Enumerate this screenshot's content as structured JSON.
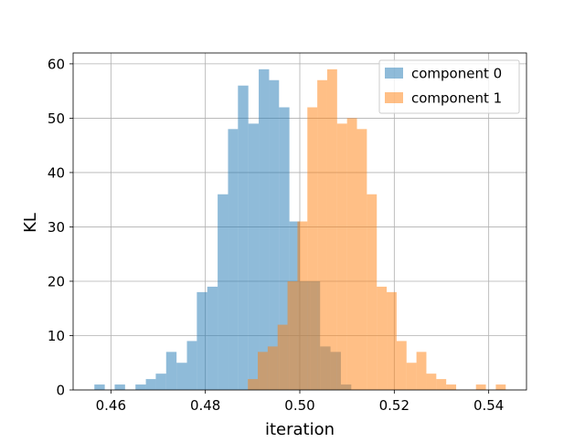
{
  "chart_data": {
    "type": "histogram",
    "xlabel": "iteration",
    "ylabel": "KL",
    "xlim": [
      0.452,
      0.548
    ],
    "ylim": [
      0,
      62
    ],
    "grid": true,
    "legend_position": "top-right",
    "x_ticks": [
      0.46,
      0.48,
      0.5,
      0.52,
      0.54
    ],
    "y_ticks": [
      0,
      10,
      20,
      30,
      40,
      50,
      60
    ],
    "x_tick_labels": [
      "0.46",
      "0.48",
      "0.50",
      "0.52",
      "0.54"
    ],
    "y_tick_labels": [
      "0",
      "10",
      "20",
      "30",
      "40",
      "50",
      "60"
    ],
    "series": [
      {
        "name": "component 0",
        "color": "#1f77b4",
        "opacity": 0.5,
        "bins": [
          {
            "x0": 0.4565,
            "x1": 0.4587,
            "count": 1
          },
          {
            "x0": 0.4608,
            "x1": 0.463,
            "count": 1
          },
          {
            "x0": 0.4652,
            "x1": 0.4674,
            "count": 1
          },
          {
            "x0": 0.4674,
            "x1": 0.4695,
            "count": 2
          },
          {
            "x0": 0.4695,
            "x1": 0.4717,
            "count": 3
          },
          {
            "x0": 0.4717,
            "x1": 0.4739,
            "count": 7
          },
          {
            "x0": 0.4739,
            "x1": 0.4761,
            "count": 5
          },
          {
            "x0": 0.4761,
            "x1": 0.4782,
            "count": 9
          },
          {
            "x0": 0.4782,
            "x1": 0.4804,
            "count": 18
          },
          {
            "x0": 0.4804,
            "x1": 0.4826,
            "count": 19
          },
          {
            "x0": 0.4826,
            "x1": 0.4848,
            "count": 36
          },
          {
            "x0": 0.4848,
            "x1": 0.4869,
            "count": 48
          },
          {
            "x0": 0.4869,
            "x1": 0.4891,
            "count": 56
          },
          {
            "x0": 0.4891,
            "x1": 0.4913,
            "count": 49
          },
          {
            "x0": 0.4913,
            "x1": 0.4935,
            "count": 59
          },
          {
            "x0": 0.4935,
            "x1": 0.4956,
            "count": 57
          },
          {
            "x0": 0.4956,
            "x1": 0.4978,
            "count": 52
          },
          {
            "x0": 0.4978,
            "x1": 0.5,
            "count": 31
          },
          {
            "x0": 0.5,
            "x1": 0.5022,
            "count": 20
          },
          {
            "x0": 0.5022,
            "x1": 0.5043,
            "count": 20
          },
          {
            "x0": 0.5043,
            "x1": 0.5065,
            "count": 8
          },
          {
            "x0": 0.5065,
            "x1": 0.5087,
            "count": 7
          },
          {
            "x0": 0.5087,
            "x1": 0.5109,
            "count": 1
          }
        ]
      },
      {
        "name": "component 1",
        "color": "#ff7f0e",
        "opacity": 0.5,
        "bins": [
          {
            "x0": 0.489,
            "x1": 0.4911,
            "count": 2
          },
          {
            "x0": 0.4911,
            "x1": 0.4932,
            "count": 7
          },
          {
            "x0": 0.4932,
            "x1": 0.4953,
            "count": 8
          },
          {
            "x0": 0.4953,
            "x1": 0.4974,
            "count": 12
          },
          {
            "x0": 0.4974,
            "x1": 0.4995,
            "count": 20
          },
          {
            "x0": 0.4995,
            "x1": 0.5016,
            "count": 31
          },
          {
            "x0": 0.5016,
            "x1": 0.5037,
            "count": 52
          },
          {
            "x0": 0.5037,
            "x1": 0.5058,
            "count": 57
          },
          {
            "x0": 0.5058,
            "x1": 0.5079,
            "count": 59
          },
          {
            "x0": 0.5079,
            "x1": 0.51,
            "count": 49
          },
          {
            "x0": 0.51,
            "x1": 0.5121,
            "count": 50
          },
          {
            "x0": 0.5121,
            "x1": 0.5142,
            "count": 48
          },
          {
            "x0": 0.5142,
            "x1": 0.5163,
            "count": 36
          },
          {
            "x0": 0.5163,
            "x1": 0.5184,
            "count": 19
          },
          {
            "x0": 0.5184,
            "x1": 0.5205,
            "count": 18
          },
          {
            "x0": 0.5205,
            "x1": 0.5226,
            "count": 9
          },
          {
            "x0": 0.5226,
            "x1": 0.5247,
            "count": 5
          },
          {
            "x0": 0.5247,
            "x1": 0.5268,
            "count": 7
          },
          {
            "x0": 0.5268,
            "x1": 0.5289,
            "count": 3
          },
          {
            "x0": 0.5289,
            "x1": 0.531,
            "count": 2
          },
          {
            "x0": 0.531,
            "x1": 0.5331,
            "count": 1
          },
          {
            "x0": 0.5373,
            "x1": 0.5394,
            "count": 1
          },
          {
            "x0": 0.5415,
            "x1": 0.5436,
            "count": 1
          }
        ]
      }
    ]
  }
}
